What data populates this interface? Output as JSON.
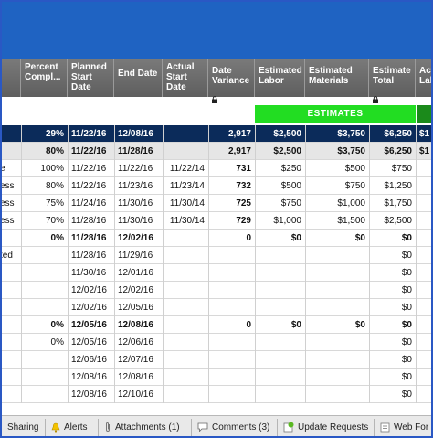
{
  "columns": [
    {
      "label": "Percent Compl..."
    },
    {
      "label": "Planned Start Date"
    },
    {
      "label": "End Date"
    },
    {
      "label": "Actual Start Date"
    },
    {
      "label": "Date Variance"
    },
    {
      "label": "Estimated Labor"
    },
    {
      "label": "Estimated Materials"
    },
    {
      "label": "Estimate Total"
    },
    {
      "label": "Actu Lab"
    }
  ],
  "estimates_label": "ESTIMATES",
  "rows": [
    {
      "style": "navy",
      "status": "",
      "pct": "29%",
      "start": "11/22/16",
      "end": "12/08/16",
      "actual": "",
      "variance": "2,917",
      "labor": "$2,500",
      "materials": "$3,750",
      "total": "$6,250",
      "act": "$1"
    },
    {
      "style": "gray",
      "status": "",
      "pct": "80%",
      "start": "11/22/16",
      "end": "11/28/16",
      "actual": "",
      "variance": "2,917",
      "labor": "$2,500",
      "materials": "$3,750",
      "total": "$6,250",
      "act": "$1"
    },
    {
      "style": "",
      "status": "e",
      "pct": "100%",
      "start": "11/22/16",
      "end": "11/22/16",
      "actual": "11/22/14",
      "variance": "731",
      "labor": "$250",
      "materials": "$500",
      "total": "$750",
      "act": ""
    },
    {
      "style": "",
      "status": "ess",
      "pct": "80%",
      "start": "11/22/16",
      "end": "11/23/16",
      "actual": "11/23/14",
      "variance": "732",
      "labor": "$500",
      "materials": "$750",
      "total": "$1,250",
      "act": ""
    },
    {
      "style": "",
      "status": "ess",
      "pct": "75%",
      "start": "11/24/16",
      "end": "11/30/16",
      "actual": "11/30/14",
      "variance": "725",
      "labor": "$750",
      "materials": "$1,000",
      "total": "$1,750",
      "act": ""
    },
    {
      "style": "",
      "status": "ess",
      "pct": "70%",
      "start": "11/28/16",
      "end": "11/30/16",
      "actual": "11/30/14",
      "variance": "729",
      "labor": "$1,000",
      "materials": "$1,500",
      "total": "$2,500",
      "act": ""
    },
    {
      "style": "bold",
      "status": "",
      "pct": "0%",
      "start": "11/28/16",
      "end": "12/02/16",
      "actual": "",
      "variance": "0",
      "labor": "$0",
      "materials": "$0",
      "total": "$0",
      "act": ""
    },
    {
      "style": "",
      "status": "ted",
      "pct": "",
      "start": "11/28/16",
      "end": "11/29/16",
      "actual": "",
      "variance": "",
      "labor": "",
      "materials": "",
      "total": "$0",
      "act": ""
    },
    {
      "style": "",
      "status": "",
      "pct": "",
      "start": "11/30/16",
      "end": "12/01/16",
      "actual": "",
      "variance": "",
      "labor": "",
      "materials": "",
      "total": "$0",
      "act": ""
    },
    {
      "style": "",
      "status": "",
      "pct": "",
      "start": "12/02/16",
      "end": "12/02/16",
      "actual": "",
      "variance": "",
      "labor": "",
      "materials": "",
      "total": "$0",
      "act": ""
    },
    {
      "style": "",
      "status": "",
      "pct": "",
      "start": "12/02/16",
      "end": "12/05/16",
      "actual": "",
      "variance": "",
      "labor": "",
      "materials": "",
      "total": "$0",
      "act": ""
    },
    {
      "style": "bold",
      "status": "",
      "pct": "0%",
      "start": "12/05/16",
      "end": "12/08/16",
      "actual": "",
      "variance": "0",
      "labor": "$0",
      "materials": "$0",
      "total": "$0",
      "act": ""
    },
    {
      "style": "",
      "status": "",
      "pct": "0%",
      "start": "12/05/16",
      "end": "12/06/16",
      "actual": "",
      "variance": "",
      "labor": "",
      "materials": "",
      "total": "$0",
      "act": ""
    },
    {
      "style": "",
      "status": "",
      "pct": "",
      "start": "12/06/16",
      "end": "12/07/16",
      "actual": "",
      "variance": "",
      "labor": "",
      "materials": "",
      "total": "$0",
      "act": ""
    },
    {
      "style": "",
      "status": "",
      "pct": "",
      "start": "12/08/16",
      "end": "12/08/16",
      "actual": "",
      "variance": "",
      "labor": "",
      "materials": "",
      "total": "$0",
      "act": ""
    },
    {
      "style": "",
      "status": "",
      "pct": "",
      "start": "12/08/16",
      "end": "12/10/16",
      "actual": "",
      "variance": "",
      "labor": "",
      "materials": "",
      "total": "$0",
      "act": ""
    }
  ],
  "tabs": [
    {
      "label": "Sharing",
      "icon": "share-icon"
    },
    {
      "label": "Alerts",
      "icon": "bell-icon"
    },
    {
      "label": "Attachments (1)",
      "icon": "paperclip-icon"
    },
    {
      "label": "Comments (3)",
      "icon": "comment-icon"
    },
    {
      "label": "Update Requests",
      "icon": "update-request-icon"
    },
    {
      "label": "Web For",
      "icon": "web-form-icon"
    }
  ],
  "colors": {
    "header_blue": "#1f63c2",
    "navy_row": "#0b2b5a",
    "estimates_green": "#22dd22"
  }
}
